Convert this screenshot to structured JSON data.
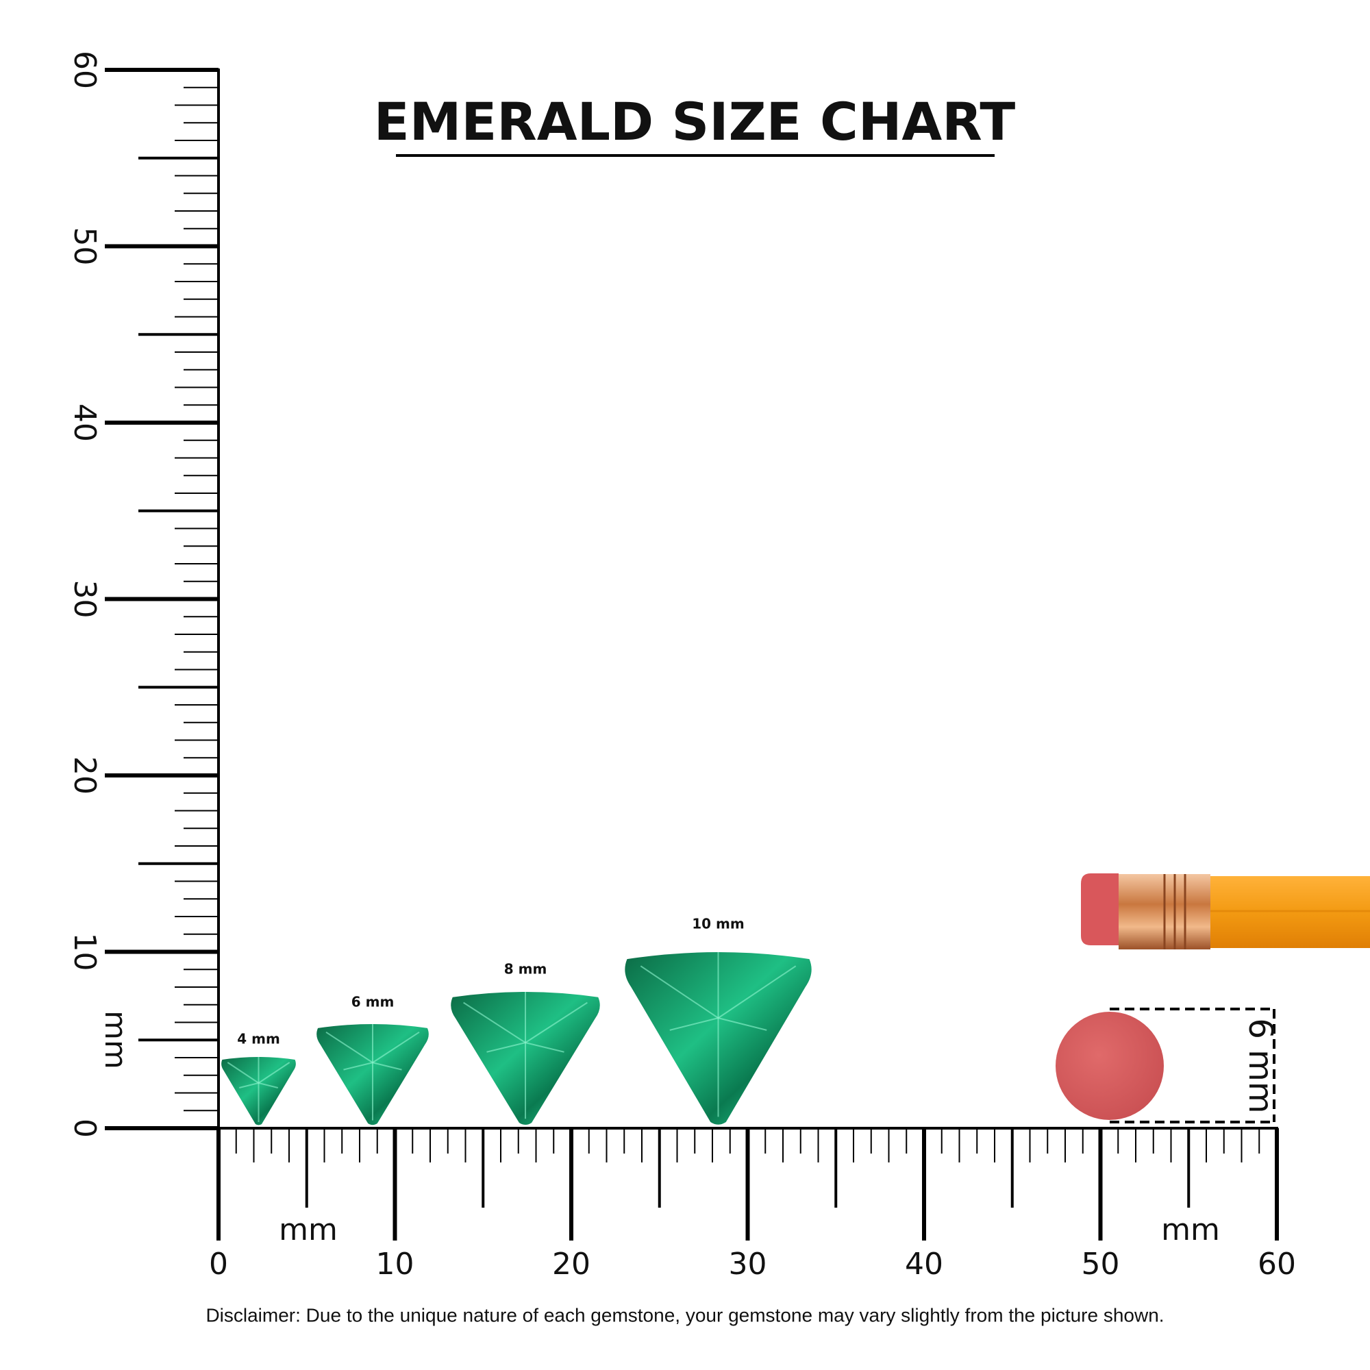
{
  "title": "EMERALD SIZE CHART",
  "vertical_ruler": {
    "labels": [
      "0",
      "10",
      "20",
      "30",
      "40",
      "50",
      "60"
    ],
    "unit": "mm"
  },
  "horizontal_ruler": {
    "labels": [
      "0",
      "10",
      "20",
      "30",
      "40",
      "50",
      "60"
    ],
    "unit": "mm",
    "unit_right": "mm"
  },
  "gems": [
    {
      "label": "4 mm"
    },
    {
      "label": "6 mm"
    },
    {
      "label": "8 mm"
    },
    {
      "label": "10 mm"
    }
  ],
  "pencil": {
    "label": "6 mm"
  },
  "disclaimer": "Disclaimer: Due to the unique nature of each gemstone, your gemstone may vary slightly from the picture shown."
}
